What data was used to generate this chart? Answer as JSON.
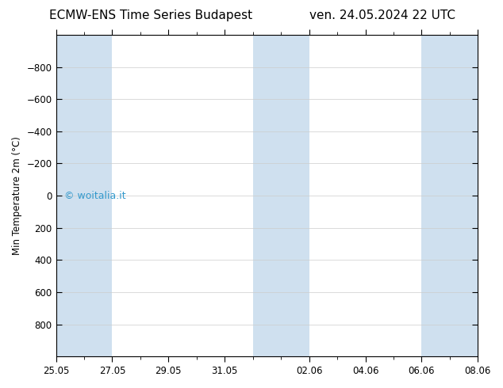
{
  "title_left": "ECMW-ENS Time Series Budapest",
  "title_right": "ven. 24.05.2024 22 UTC",
  "ylabel": "Min Temperature 2m (°C)",
  "ylim_top": -1000,
  "ylim_bottom": 1000,
  "yticks": [
    -800,
    -600,
    -400,
    -200,
    0,
    200,
    400,
    600,
    800
  ],
  "xtick_labels": [
    "25.05",
    "27.05",
    "29.05",
    "31.05",
    "02.06",
    "04.06",
    "06.06",
    "08.06"
  ],
  "xtick_days": [
    0,
    2,
    4,
    6,
    9,
    11,
    13,
    15
  ],
  "total_days": 15,
  "band_color": "#cfe0ef",
  "background_color": "#ffffff",
  "watermark_text": "© woitalia.it",
  "watermark_color": "#3399cc",
  "title_fontsize": 11,
  "axis_fontsize": 8.5,
  "tick_fontsize": 8.5,
  "bands": [
    [
      0,
      2
    ],
    [
      8,
      9
    ],
    [
      9,
      10
    ],
    [
      14,
      15
    ]
  ]
}
